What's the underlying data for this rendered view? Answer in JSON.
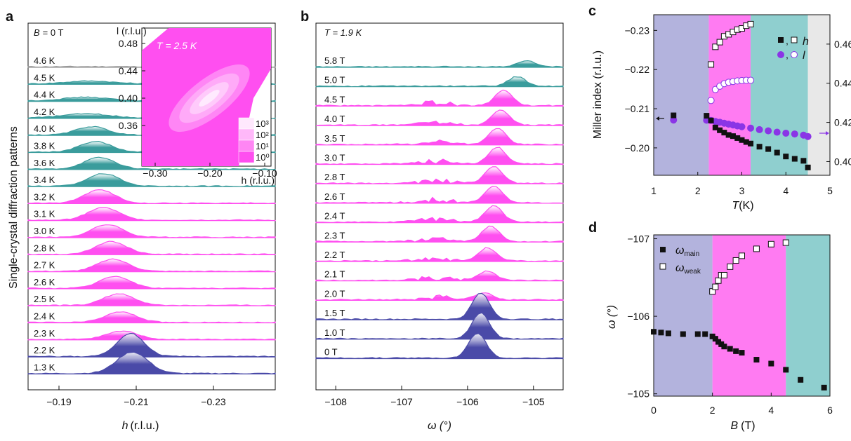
{
  "colors": {
    "blue": "#4a4aa8",
    "teal": "#3a9c9c",
    "magenta": "#ff4ff0",
    "grey": "#9a9a9a",
    "bg_blue": "#b3b3dd",
    "bg_magenta": "#ff7bf2",
    "bg_teal": "#8fcfcf",
    "bg_grey": "#e8e8e8",
    "purple": "#8a35e6"
  },
  "chart_data": [
    {
      "panel": "a",
      "type": "area",
      "xlabel_var": "h",
      "xlabel_unit": "(r.l.u.)",
      "ylabel": "Single-crystal diffraction  patterns",
      "field_label": "B",
      "field_value": "= 0 T",
      "x_ticks": [
        "−0.19",
        "−0.21",
        "−0.23"
      ],
      "x_tick_values": [
        -0.19,
        -0.21,
        -0.23
      ],
      "xlim": [
        -0.182,
        -0.246
      ],
      "series": [
        {
          "name": "4.6 K",
          "color": "grey",
          "center": -0.2,
          "height": 0.05,
          "width": 0.01
        },
        {
          "name": "4.5 K",
          "color": "teal",
          "center": -0.198,
          "height": 0.55,
          "width": 0.006
        },
        {
          "name": "4.4 K",
          "color": "teal",
          "center": -0.197,
          "height": 0.7,
          "width": 0.006
        },
        {
          "name": "4.2 K",
          "color": "teal",
          "center": -0.197,
          "height": 0.8,
          "width": 0.006
        },
        {
          "name": "4.0 K",
          "color": "teal",
          "center": -0.1985,
          "height": 1.6,
          "width": 0.004
        },
        {
          "name": "3.8 K",
          "color": "teal",
          "center": -0.1995,
          "height": 2.0,
          "width": 0.004
        },
        {
          "name": "3.6 K",
          "color": "teal",
          "center": -0.2005,
          "height": 2.2,
          "width": 0.004
        },
        {
          "name": "3.4 K",
          "color": "teal",
          "center": -0.2015,
          "height": 2.4,
          "width": 0.004
        },
        {
          "name": "3.2 K",
          "color": "magenta",
          "center": -0.2005,
          "height": 2.5,
          "width": 0.004
        },
        {
          "name": "3.1 K",
          "color": "magenta",
          "center": -0.2015,
          "height": 2.4,
          "width": 0.004
        },
        {
          "name": "3.0 K",
          "color": "magenta",
          "center": -0.2025,
          "height": 2.4,
          "width": 0.004
        },
        {
          "name": "2.8 K",
          "color": "magenta",
          "center": -0.2035,
          "height": 2.4,
          "width": 0.004
        },
        {
          "name": "2.7 K",
          "color": "magenta",
          "center": -0.204,
          "height": 2.3,
          "width": 0.004
        },
        {
          "name": "2.6 K",
          "color": "magenta",
          "center": -0.2045,
          "height": 2.3,
          "width": 0.004
        },
        {
          "name": "2.5 K",
          "color": "magenta",
          "center": -0.2055,
          "height": 2.2,
          "width": 0.004
        },
        {
          "name": "2.4 K",
          "color": "magenta",
          "center": -0.206,
          "height": 2.0,
          "width": 0.004
        },
        {
          "name": "2.3 K",
          "color": "magenta",
          "center": -0.2065,
          "height": 1.6,
          "width": 0.004
        },
        {
          "name": "2.2 K",
          "color": "blue",
          "center": -0.2085,
          "height": 4.4,
          "width": 0.0035
        },
        {
          "name": "1.3 K",
          "color": "blue",
          "center": -0.209,
          "height": 4.1,
          "width": 0.004
        }
      ]
    },
    {
      "panel": "a-inset",
      "type": "heatmap",
      "title": "T = 2.5 K",
      "xlabel": "h (r.l.u.)",
      "ylabel": "l (r.l.u.)",
      "x_ticks": [
        "−0.30",
        "−0.20",
        "−0.10"
      ],
      "y_ticks": [
        "0.48",
        "0.44",
        "0.40",
        "0.36"
      ],
      "colorbar": [
        "10³",
        "10²",
        "10¹",
        "10⁰"
      ]
    },
    {
      "panel": "b",
      "type": "area",
      "xlabel": "ω (°)",
      "title": "T = 1.9 K",
      "x_ticks": [
        "−108",
        "−107",
        "−106",
        "−105"
      ],
      "x_tick_values": [
        -108,
        -107,
        -106,
        -105
      ],
      "xlim": [
        -108.3,
        -104.55
      ],
      "series": [
        {
          "name": "5.8 T",
          "color": "teal",
          "center": -105.1,
          "height": 1.0
        },
        {
          "name": "5.0 T",
          "color": "teal",
          "center": -105.25,
          "height": 1.6
        },
        {
          "name": "4.5 T",
          "color": "magenta",
          "center": -105.45,
          "height": 2.6
        },
        {
          "name": "4.0 T",
          "color": "magenta",
          "center": -105.5,
          "height": 2.5
        },
        {
          "name": "3.5 T",
          "color": "magenta",
          "center": -105.55,
          "height": 2.7
        },
        {
          "name": "3.0 T",
          "color": "magenta",
          "center": -105.55,
          "height": 2.8
        },
        {
          "name": "2.8 T",
          "color": "magenta",
          "center": -105.6,
          "height": 2.8
        },
        {
          "name": "2.6 T",
          "color": "magenta",
          "center": -105.6,
          "height": 2.8
        },
        {
          "name": "2.4 T",
          "color": "magenta",
          "center": -105.6,
          "height": 2.8
        },
        {
          "name": "2.3 T",
          "color": "magenta",
          "center": -105.65,
          "height": 2.6
        },
        {
          "name": "2.2 T",
          "color": "magenta",
          "center": -105.7,
          "height": 2.2
        },
        {
          "name": "2.1 T",
          "color": "magenta",
          "center": -105.7,
          "height": 1.6
        },
        {
          "name": "2.0 T",
          "color": "magenta",
          "center": -105.75,
          "height": 1.2
        },
        {
          "name": "1.5 T",
          "color": "blue",
          "center": -105.8,
          "height": 4.4
        },
        {
          "name": "1.0 T",
          "color": "blue",
          "center": -105.8,
          "height": 4.3
        },
        {
          "name": "0 T",
          "color": "blue",
          "center": -105.85,
          "height": 4.2
        }
      ]
    },
    {
      "panel": "c",
      "type": "scatter",
      "xlabel_var": "T",
      "xlabel_unit": "(K)",
      "ylabel": "Miller index (r.l.u.)",
      "x_ticks": [
        "1",
        "2",
        "3",
        "4",
        "5"
      ],
      "xlim": [
        1,
        5
      ],
      "ylim_left": [
        -0.193,
        -0.234
      ],
      "y_ticks_left": [
        "−0.23",
        "−0.22",
        "−0.21",
        "−0.20"
      ],
      "ylim_right": [
        0.393,
        0.475
      ],
      "y_ticks_right": [
        "0.46",
        "0.44",
        "0.42",
        "0.40"
      ],
      "regions": [
        {
          "from": 1,
          "to": 2.25,
          "color": "bg_blue"
        },
        {
          "from": 2.25,
          "to": 3.2,
          "color": "bg_magenta"
        },
        {
          "from": 3.2,
          "to": 4.5,
          "color": "bg_teal"
        },
        {
          "from": 4.5,
          "to": 5,
          "color": "bg_grey"
        }
      ],
      "legend_sep": ",",
      "legend": [
        {
          "label": "h",
          "marker": "square"
        },
        {
          "label": "l",
          "marker": "circle"
        }
      ],
      "h_main": {
        "x": [
          1.45,
          2.2,
          2.3,
          2.4,
          2.5,
          2.6,
          2.7,
          2.8,
          2.9,
          3.0,
          3.1,
          3.2,
          3.4,
          3.6,
          3.8,
          4.0,
          4.2,
          4.4,
          4.5
        ],
        "y": [
          -0.2083,
          -0.2082,
          -0.207,
          -0.2052,
          -0.2045,
          -0.2039,
          -0.2033,
          -0.203,
          -0.2025,
          -0.202,
          -0.2015,
          -0.2011,
          -0.2003,
          -0.1997,
          -0.1988,
          -0.1978,
          -0.1972,
          -0.1967,
          -0.195
        ]
      },
      "h_weak": {
        "x": [
          2.3,
          2.4,
          2.5,
          2.6,
          2.7,
          2.8,
          2.9,
          3.0,
          3.1,
          3.2
        ],
        "y": [
          -0.2213,
          -0.2258,
          -0.227,
          -0.2285,
          -0.229,
          -0.2296,
          -0.2302,
          -0.2305,
          -0.2312,
          -0.2316
        ]
      },
      "l_main": {
        "x": [
          1.45,
          2.2,
          2.3,
          2.4,
          2.5,
          2.6,
          2.7,
          2.8,
          2.9,
          3.0,
          3.2,
          3.4,
          3.6,
          3.8,
          4.0,
          4.2,
          4.4,
          4.5
        ],
        "y": [
          0.4212,
          0.4211,
          0.421,
          0.4205,
          0.4201,
          0.4196,
          0.4191,
          0.4187,
          0.4182,
          0.4178,
          0.4171,
          0.4163,
          0.4157,
          0.415,
          0.4145,
          0.4141,
          0.4135,
          0.4128
        ]
      },
      "l_weak": {
        "x": [
          2.3,
          2.4,
          2.5,
          2.6,
          2.7,
          2.8,
          2.9,
          3.0,
          3.1,
          3.2
        ],
        "y": [
          0.4312,
          0.4368,
          0.4385,
          0.4398,
          0.4405,
          0.4409,
          0.4412,
          0.4414,
          0.4415,
          0.4415
        ]
      }
    },
    {
      "panel": "d",
      "type": "scatter",
      "xlabel_var": "B",
      "xlabel_unit": "(T)",
      "ylabel": "ω (°)",
      "x_ticks": [
        "0",
        "2",
        "4",
        "6"
      ],
      "xlim": [
        0,
        6
      ],
      "ylim": [
        -104.97,
        -107.05
      ],
      "y_ticks": [
        "−107",
        "−106",
        "−105"
      ],
      "regions": [
        {
          "from": 0,
          "to": 2.0,
          "color": "bg_blue"
        },
        {
          "from": 2.0,
          "to": 4.5,
          "color": "bg_magenta"
        },
        {
          "from": 4.5,
          "to": 6,
          "color": "bg_teal"
        }
      ],
      "legend": [
        {
          "label": "ω",
          "sub": "main",
          "marker": "filled"
        },
        {
          "label": "ω",
          "sub": "weak",
          "marker": "open"
        }
      ],
      "main": {
        "x": [
          0,
          0.25,
          0.5,
          1.0,
          1.5,
          1.75,
          2.0,
          2.1,
          2.2,
          2.3,
          2.4,
          2.6,
          2.8,
          3.0,
          3.5,
          4.0,
          4.5,
          5.0,
          5.8
        ],
        "y": [
          -105.8,
          -105.79,
          -105.78,
          -105.77,
          -105.77,
          -105.77,
          -105.74,
          -105.71,
          -105.67,
          -105.64,
          -105.61,
          -105.58,
          -105.55,
          -105.53,
          -105.44,
          -105.39,
          -105.31,
          -105.18,
          -105.08
        ]
      },
      "weak": {
        "x": [
          2.0,
          2.1,
          2.2,
          2.3,
          2.4,
          2.6,
          2.8,
          3.0,
          3.5,
          4.0,
          4.5
        ],
        "y": [
          -106.32,
          -106.38,
          -106.46,
          -106.53,
          -106.53,
          -106.64,
          -106.72,
          -106.78,
          -106.87,
          -106.93,
          -106.95
        ]
      }
    }
  ],
  "panel_labels": {
    "a": "a",
    "b": "b",
    "c": "c",
    "d": "d"
  }
}
